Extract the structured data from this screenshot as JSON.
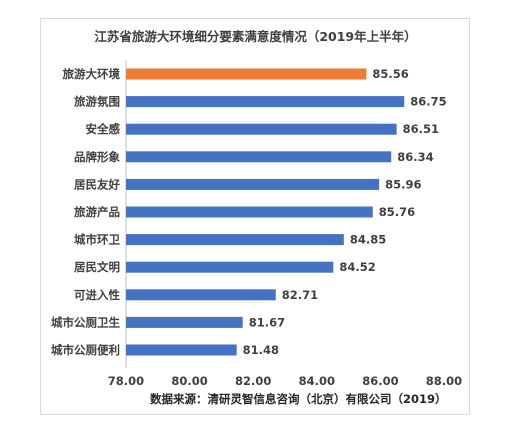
{
  "chart_data": {
    "type": "bar",
    "orientation": "horizontal",
    "title": "江苏省旅游大环境细分要素满意度情况（2019年上半年）",
    "categories": [
      "旅游大环境",
      "旅游氛围",
      "安全感",
      "品牌形象",
      "居民友好",
      "旅游产品",
      "城市环卫",
      "居民文明",
      "可进入性",
      "城市公厕卫生",
      "城市公厕便利"
    ],
    "values": [
      85.56,
      86.75,
      86.51,
      86.34,
      85.96,
      85.76,
      84.85,
      84.52,
      82.71,
      81.67,
      81.48
    ],
    "value_labels": [
      "85.56",
      "86.75",
      "86.51",
      "86.34",
      "85.96",
      "85.76",
      "84.85",
      "84.52",
      "82.71",
      "81.67",
      "81.48"
    ],
    "highlight_index": 0,
    "colors": {
      "default": "#4472C4",
      "highlight": "#ED7D31"
    },
    "xlim": [
      78,
      88
    ],
    "xticks": [
      "78.00",
      "80.00",
      "82.00",
      "84.00",
      "86.00",
      "88.00"
    ],
    "grid": false,
    "legend": "none",
    "source_note": "数据来源：清研灵智信息咨询（北京）有限公司（2019）"
  }
}
